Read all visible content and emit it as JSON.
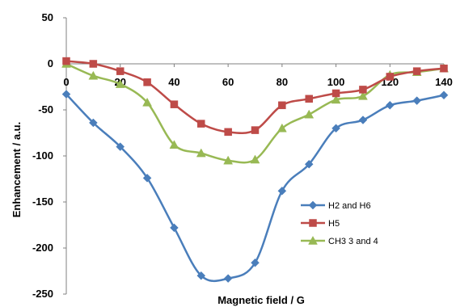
{
  "chart_data": {
    "type": "line",
    "xlabel": "Magnetic field / G",
    "ylabel": "Enhancement / a.u.",
    "xlim": [
      0,
      140
    ],
    "ylim": [
      -250,
      50
    ],
    "x_ticks": [
      "0",
      "20",
      "40",
      "60",
      "80",
      "100",
      "120",
      "140"
    ],
    "y_ticks": [
      "50",
      "0",
      "-50",
      "-100",
      "-150",
      "-200",
      "-250"
    ],
    "x_tick_values": [
      0,
      20,
      40,
      60,
      80,
      100,
      120,
      140
    ],
    "y_tick_values": [
      50,
      0,
      -50,
      -100,
      -150,
      -200,
      -250
    ],
    "grid": false,
    "legend_position": "right",
    "x": [
      0,
      10,
      20,
      30,
      40,
      50,
      60,
      70,
      80,
      90,
      100,
      110,
      120,
      130,
      140
    ],
    "series": [
      {
        "name": "H2 and H6",
        "color": "#4a7ebb",
        "marker": "diamond",
        "values": [
          -33,
          -64,
          -90,
          -124,
          -178,
          -230,
          -233,
          -216,
          -138,
          -109,
          -70,
          -61,
          -45,
          -40,
          -34
        ]
      },
      {
        "name": "H5",
        "color": "#be4b48",
        "marker": "square",
        "values": [
          3,
          0,
          -8,
          -20,
          -44,
          -65,
          -74,
          -72,
          -45,
          -38,
          -32,
          -28,
          -14,
          -8,
          -5
        ]
      },
      {
        "name": "CH3 3 and 4",
        "color": "#98b954",
        "marker": "triangle",
        "values": [
          0,
          -13,
          -22,
          -42,
          -88,
          -97,
          -105,
          -104,
          -70,
          -55,
          -39,
          -35,
          -12,
          -9,
          -5
        ]
      }
    ]
  }
}
